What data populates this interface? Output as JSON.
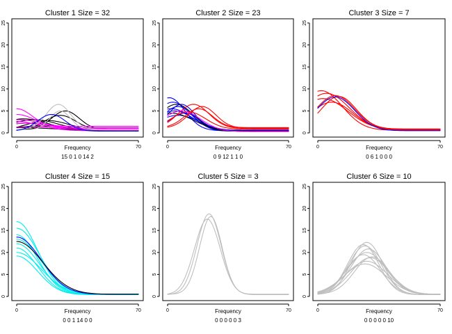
{
  "colors": {
    "black": "#000000",
    "magenta": "#ff00ff",
    "gray": "#bebebe",
    "blue": "#0000ff",
    "red": "#ff0000",
    "cyan": "#00eeee"
  },
  "chart_data": [
    {
      "type": "line",
      "title": "Cluster 1 Size = 32",
      "xlabel": "Frequency",
      "counts_label": "15 0 1 0 14 2",
      "xlim": [
        0,
        70
      ],
      "ylim": [
        0,
        25
      ],
      "x_ticks": [
        0,
        70
      ],
      "y_ticks": [
        0,
        5,
        10,
        15,
        20,
        25
      ],
      "series": [
        {
          "name": "black",
          "color": "black",
          "count": 15,
          "curves": [
            {
              "peak": 3.0,
              "center": 10,
              "width": 14,
              "tail": 0.5
            },
            {
              "peak": 2.2,
              "center": 6,
              "width": 16,
              "tail": 0.6
            },
            {
              "peak": 4.0,
              "center": 25,
              "width": 9,
              "tail": 0.6
            },
            {
              "peak": 5.0,
              "center": 28,
              "width": 8,
              "tail": 0.7
            },
            {
              "peak": 1.6,
              "center": 14,
              "width": 15,
              "tail": 0.7
            },
            {
              "peak": 3.2,
              "center": 4,
              "width": 14,
              "tail": 0.5
            },
            {
              "peak": 2.8,
              "center": 18,
              "width": 12,
              "tail": 0.6
            },
            {
              "peak": 1.2,
              "center": 2,
              "width": 18,
              "tail": 0.6
            }
          ]
        },
        {
          "name": "magenta",
          "color": "magenta",
          "count": 14,
          "curves": [
            {
              "peak": 5.5,
              "center": 0,
              "width": 9,
              "tail": 1.2
            },
            {
              "peak": 4.2,
              "center": 0,
              "width": 11,
              "tail": 0.9
            },
            {
              "peak": 3.0,
              "center": 2,
              "width": 10,
              "tail": 1.5
            },
            {
              "peak": 2.2,
              "center": 5,
              "width": 14,
              "tail": 1.0
            },
            {
              "peak": 1.4,
              "center": 8,
              "width": 15,
              "tail": 0.7
            },
            {
              "peak": 2.6,
              "center": 0,
              "width": 13,
              "tail": 0.5
            }
          ]
        },
        {
          "name": "gray",
          "color": "gray",
          "count": 2,
          "curves": [
            {
              "peak": 6.5,
              "center": 24,
              "width": 7,
              "tail": 0.8
            },
            {
              "peak": 5.0,
              "center": 25,
              "width": 6,
              "tail": 0.7
            }
          ]
        },
        {
          "name": "blue",
          "color": "blue",
          "count": 1,
          "curves": [
            {
              "peak": 4.2,
              "center": 20,
              "width": 8,
              "tail": 0.4
            }
          ]
        }
      ]
    },
    {
      "type": "line",
      "title": "Cluster 2 Size = 23",
      "xlabel": "Frequency",
      "counts_label": "0 9 12 1 1 0",
      "xlim": [
        0,
        70
      ],
      "ylim": [
        0,
        25
      ],
      "x_ticks": [
        0,
        70
      ],
      "y_ticks": [
        0,
        5,
        10,
        15,
        20,
        25
      ],
      "series": [
        {
          "name": "blue",
          "color": "blue",
          "count": 12,
          "curves": [
            {
              "peak": 7.0,
              "center": 3,
              "width": 10,
              "tail": 0.5
            },
            {
              "peak": 6.0,
              "center": 6,
              "width": 9,
              "tail": 0.4
            },
            {
              "peak": 5.5,
              "center": 2,
              "width": 12,
              "tail": 0.5
            },
            {
              "peak": 6.5,
              "center": 8,
              "width": 8,
              "tail": 0.5
            },
            {
              "peak": 5.0,
              "center": 4,
              "width": 11,
              "tail": 0.6
            },
            {
              "peak": 4.5,
              "center": 10,
              "width": 9,
              "tail": 0.4
            },
            {
              "peak": 8.0,
              "center": 1,
              "width": 9,
              "tail": 0.5
            },
            {
              "peak": 4.0,
              "center": 6,
              "width": 12,
              "tail": 0.5
            }
          ]
        },
        {
          "name": "black",
          "color": "black",
          "count": 0,
          "curves": [
            {
              "peak": 6.5,
              "center": 5,
              "width": 10,
              "tail": 0.4
            },
            {
              "peak": 4.5,
              "center": 2,
              "width": 13,
              "tail": 0.4
            }
          ]
        },
        {
          "name": "red",
          "color": "red",
          "count": 9,
          "curves": [
            {
              "peak": 6.5,
              "center": 15,
              "width": 9,
              "tail": 1.0
            },
            {
              "peak": 5.5,
              "center": 18,
              "width": 8,
              "tail": 1.2
            },
            {
              "peak": 4.8,
              "center": 12,
              "width": 10,
              "tail": 0.8
            },
            {
              "peak": 6.0,
              "center": 20,
              "width": 8,
              "tail": 1.1
            }
          ]
        },
        {
          "name": "magenta",
          "color": "magenta",
          "count": 1,
          "curves": [
            {
              "peak": 5.0,
              "center": 8,
              "width": 11,
              "tail": 0.3
            }
          ]
        }
      ]
    },
    {
      "type": "line",
      "title": "Cluster 3 Size = 7",
      "xlabel": "Frequency",
      "counts_label": "0 6 1 0 0 0",
      "xlim": [
        0,
        70
      ],
      "ylim": [
        0,
        25
      ],
      "x_ticks": [
        0,
        70
      ],
      "y_ticks": [
        0,
        5,
        10,
        15,
        20,
        25
      ],
      "series": [
        {
          "name": "red",
          "color": "red",
          "count": 6,
          "curves": [
            {
              "peak": 9.0,
              "center": 5,
              "width": 13,
              "tail": 0.7
            },
            {
              "peak": 8.5,
              "center": 10,
              "width": 11,
              "tail": 0.8
            },
            {
              "peak": 7.8,
              "center": 3,
              "width": 14,
              "tail": 0.7
            },
            {
              "peak": 8.3,
              "center": 12,
              "width": 10,
              "tail": 0.9
            },
            {
              "peak": 7.0,
              "center": 8,
              "width": 12,
              "tail": 0.7
            },
            {
              "peak": 9.6,
              "center": 2,
              "width": 12,
              "tail": 0.6
            }
          ]
        },
        {
          "name": "blue",
          "color": "blue",
          "count": 1,
          "curves": [
            {
              "peak": 8.2,
              "center": 10,
              "width": 11,
              "tail": 0.5
            }
          ]
        }
      ]
    },
    {
      "type": "line",
      "title": "Cluster 4 Size = 15",
      "xlabel": "Frequency",
      "counts_label": "0 0 1 14 0 0",
      "xlim": [
        0,
        70
      ],
      "ylim": [
        0,
        25
      ],
      "x_ticks": [
        0,
        70
      ],
      "y_ticks": [
        0,
        5,
        10,
        15,
        20,
        25
      ],
      "series": [
        {
          "name": "cyan",
          "color": "cyan",
          "count": 14,
          "curves": [
            {
              "peak": 17.0,
              "center": 0,
              "width": 12,
              "tail": 0.5
            },
            {
              "peak": 15.5,
              "center": 0,
              "width": 13,
              "tail": 0.5
            },
            {
              "peak": 14.0,
              "center": 0,
              "width": 12,
              "tail": 0.4
            },
            {
              "peak": 13.0,
              "center": 0,
              "width": 14,
              "tail": 0.5
            },
            {
              "peak": 12.0,
              "center": 0,
              "width": 13,
              "tail": 0.4
            },
            {
              "peak": 11.0,
              "center": 0,
              "width": 12,
              "tail": 0.4
            },
            {
              "peak": 10.0,
              "center": 0,
              "width": 14,
              "tail": 0.5
            },
            {
              "peak": 9.2,
              "center": 0,
              "width": 12,
              "tail": 0.4
            }
          ]
        },
        {
          "name": "blue",
          "color": "blue",
          "count": 1,
          "curves": [
            {
              "peak": 13.5,
              "center": 0,
              "width": 14,
              "tail": 0.5
            }
          ]
        },
        {
          "name": "black",
          "color": "black",
          "count": 0,
          "curves": [
            {
              "peak": 12.5,
              "center": 0,
              "width": 15,
              "tail": 0.5
            }
          ]
        }
      ]
    },
    {
      "type": "line",
      "title": "Cluster 5 Size = 3",
      "xlabel": "Frequency",
      "counts_label": "0 0 0 0 0 3",
      "xlim": [
        0,
        70
      ],
      "ylim": [
        0,
        25
      ],
      "x_ticks": [
        0,
        70
      ],
      "y_ticks": [
        0,
        5,
        10,
        15,
        20,
        25
      ],
      "series": [
        {
          "name": "gray",
          "color": "gray",
          "count": 3,
          "curves": [
            {
              "peak": 18.8,
              "center": 24,
              "width": 7,
              "tail": 0.4
            },
            {
              "peak": 18.2,
              "center": 25,
              "width": 6.5,
              "tail": 0.5
            },
            {
              "peak": 17.6,
              "center": 23,
              "width": 7.5,
              "tail": 0.4
            }
          ]
        }
      ]
    },
    {
      "type": "line",
      "title": "Cluster 6 Size = 10",
      "xlabel": "Frequency",
      "counts_label": "0 0 0 0 0 10",
      "xlim": [
        0,
        70
      ],
      "ylim": [
        0,
        25
      ],
      "x_ticks": [
        0,
        70
      ],
      "y_ticks": [
        0,
        5,
        10,
        15,
        20,
        25
      ],
      "series": [
        {
          "name": "gray",
          "color": "gray",
          "count": 10,
          "curves": [
            {
              "peak": 12.3,
              "center": 28,
              "width": 9,
              "tail": 0.4
            },
            {
              "peak": 11.5,
              "center": 27,
              "width": 9.5,
              "tail": 0.4
            },
            {
              "peak": 10.8,
              "center": 29,
              "width": 10,
              "tail": 0.5
            },
            {
              "peak": 10.0,
              "center": 28,
              "width": 11,
              "tail": 0.5
            },
            {
              "peak": 9.5,
              "center": 26,
              "width": 10,
              "tail": 0.4
            },
            {
              "peak": 8.8,
              "center": 30,
              "width": 11,
              "tail": 0.5
            },
            {
              "peak": 8.0,
              "center": 28,
              "width": 12,
              "tail": 0.4
            },
            {
              "peak": 7.4,
              "center": 27,
              "width": 12,
              "tail": 0.5
            },
            {
              "peak": 11.8,
              "center": 26,
              "width": 9,
              "tail": 0.4
            },
            {
              "peak": 9.0,
              "center": 31,
              "width": 10,
              "tail": 0.5
            }
          ]
        }
      ]
    }
  ]
}
